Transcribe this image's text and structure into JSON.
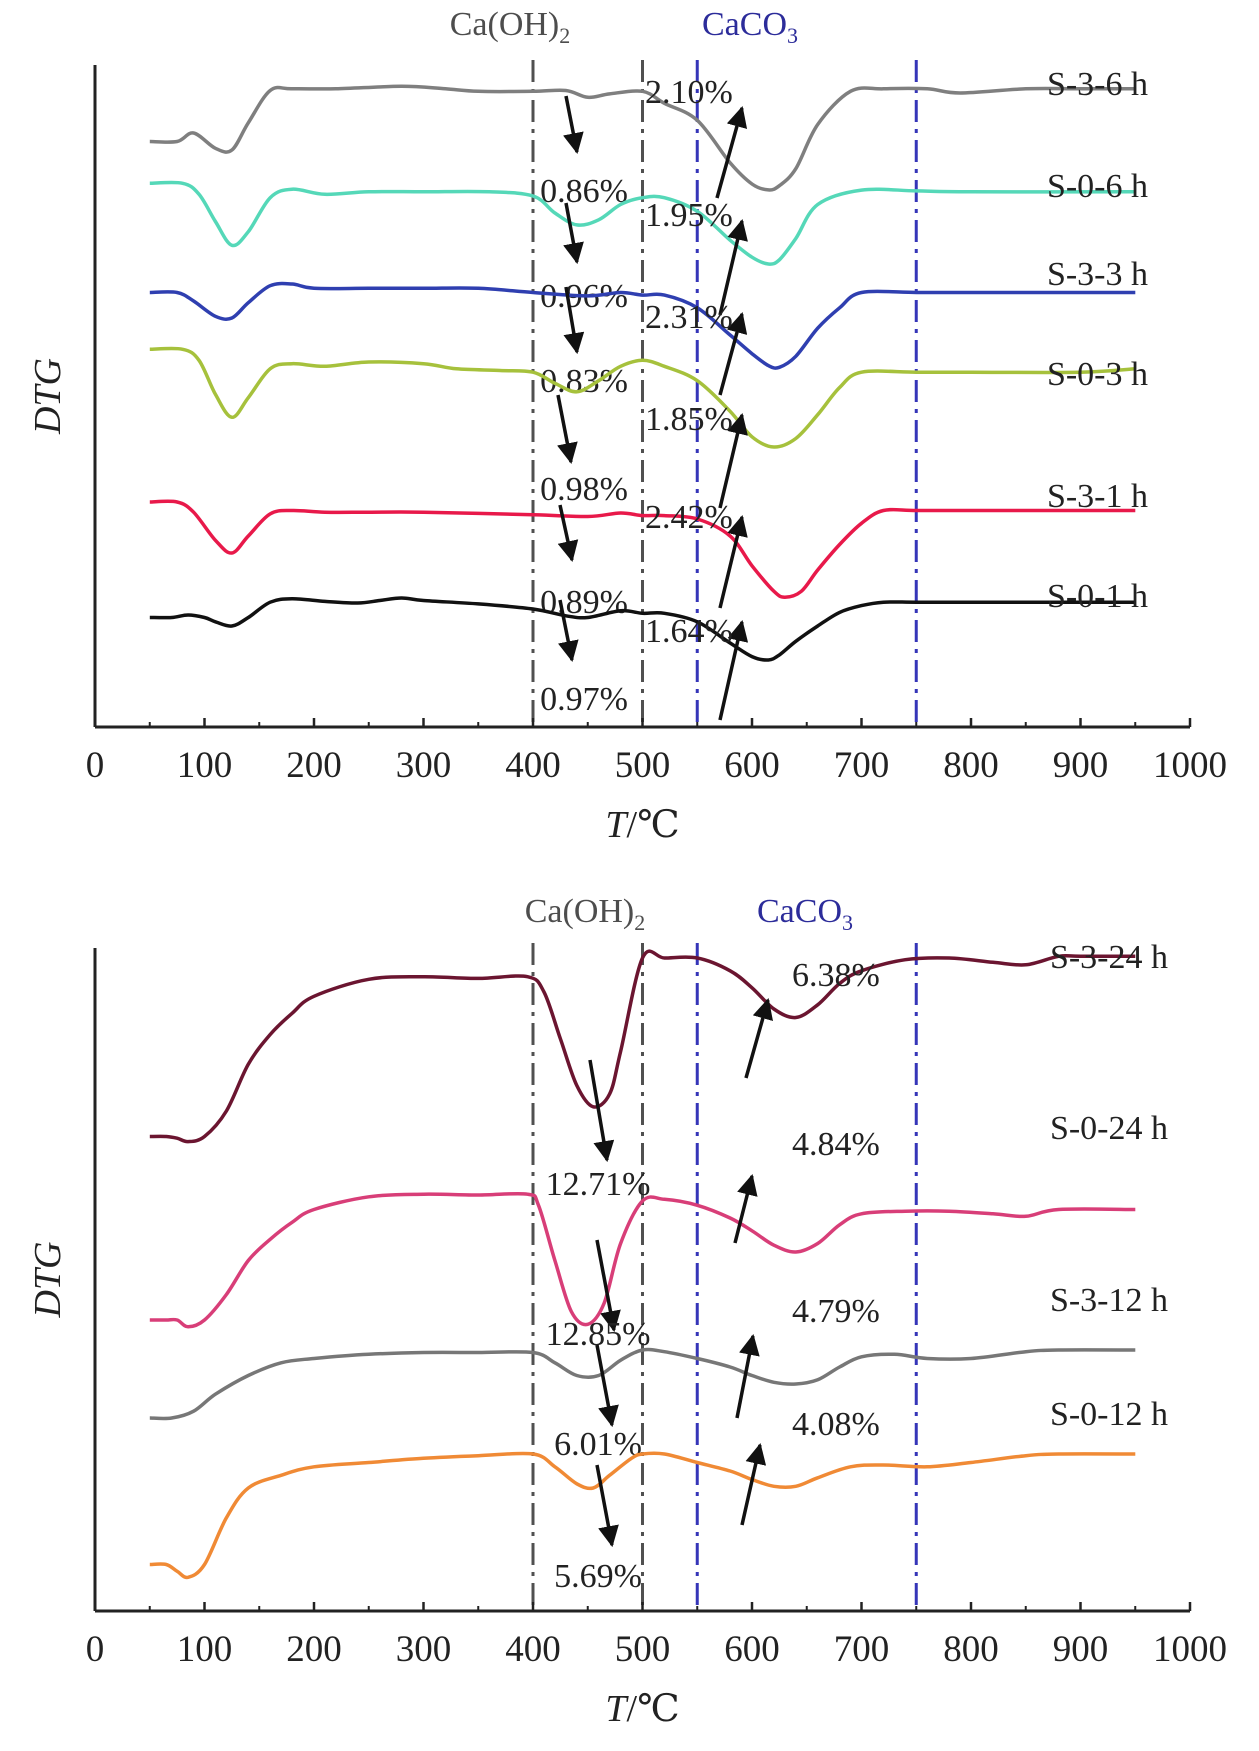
{
  "chart_data": [
    {
      "type": "line",
      "title": "",
      "xlabel_var": "T",
      "xlabel_unit": "/℃",
      "ylabel": "DTG",
      "xlim": [
        0,
        1000
      ],
      "xticks": [
        "0",
        "100",
        "200",
        "300",
        "400",
        "500",
        "600",
        "700",
        "800",
        "900",
        "1000"
      ],
      "grid": false,
      "regions": [
        {
          "label": "Ca(OH)",
          "sub": "2",
          "from": 400,
          "to": 500,
          "color": "#4d4d4d"
        },
        {
          "label": "CaCO",
          "sub": "3",
          "from": 550,
          "to": 750,
          "color": "#2c2c9a"
        }
      ],
      "series": [
        {
          "name": "S-3-6 h",
          "color": "#7f7f7f",
          "ch_pct": "0.86%",
          "cc_pct": "2.10%",
          "x": [
            50,
            75,
            90,
            110,
            125,
            140,
            160,
            180,
            220,
            280,
            320,
            350,
            400,
            430,
            450,
            470,
            500,
            520,
            550,
            580,
            600,
            615,
            625,
            640,
            660,
            690,
            720,
            760,
            790,
            850,
            900,
            950
          ],
          "y": [
            0.1,
            0.1,
            0.2,
            0.02,
            0.0,
            0.32,
            0.7,
            0.72,
            0.72,
            0.75,
            0.72,
            0.69,
            0.69,
            0.7,
            0.62,
            0.66,
            0.69,
            0.55,
            0.35,
            -0.15,
            -0.4,
            -0.47,
            -0.42,
            -0.22,
            0.3,
            0.69,
            0.72,
            0.72,
            0.67,
            0.72,
            0.72,
            0.72
          ]
        },
        {
          "name": "S-0-6 h",
          "color": "#55d8b8",
          "ch_pct": "0.96%",
          "cc_pct": "1.95%",
          "x": [
            50,
            80,
            95,
            110,
            125,
            140,
            160,
            180,
            210,
            250,
            300,
            360,
            400,
            420,
            440,
            460,
            480,
            500,
            520,
            550,
            580,
            600,
            615,
            625,
            640,
            660,
            700,
            750,
            800,
            950
          ],
          "y": [
            0.55,
            0.55,
            0.42,
            0.1,
            -0.18,
            -0.02,
            0.38,
            0.48,
            0.42,
            0.45,
            0.45,
            0.45,
            0.4,
            0.2,
            0.06,
            0.12,
            0.3,
            0.38,
            0.38,
            0.22,
            -0.12,
            -0.32,
            -0.4,
            -0.35,
            -0.1,
            0.3,
            0.47,
            0.46,
            0.45,
            0.45
          ]
        },
        {
          "name": "S-3-3 h",
          "color": "#2f3fb0",
          "ch_pct": "0.83%",
          "cc_pct": "2.31%",
          "x": [
            50,
            75,
            90,
            110,
            125,
            140,
            160,
            180,
            200,
            250,
            300,
            350,
            400,
            450,
            480,
            500,
            520,
            550,
            580,
            600,
            615,
            625,
            640,
            660,
            680,
            700,
            750,
            800,
            950
          ],
          "y": [
            0.3,
            0.3,
            0.2,
            0.02,
            0.0,
            0.18,
            0.38,
            0.4,
            0.35,
            0.35,
            0.35,
            0.35,
            0.3,
            0.26,
            0.3,
            0.27,
            0.27,
            0.12,
            -0.2,
            -0.42,
            -0.56,
            -0.58,
            -0.45,
            -0.12,
            0.12,
            0.3,
            0.3,
            0.3,
            0.3
          ]
        },
        {
          "name": "S-0-3 h",
          "color": "#a6c13c",
          "ch_pct": "0.98%",
          "cc_pct": "1.85%",
          "x": [
            50,
            80,
            95,
            110,
            125,
            140,
            160,
            180,
            210,
            250,
            300,
            330,
            370,
            400,
            420,
            440,
            460,
            480,
            500,
            520,
            550,
            580,
            600,
            620,
            640,
            660,
            680,
            700,
            750,
            800,
            900,
            950
          ],
          "y": [
            0.75,
            0.75,
            0.62,
            0.22,
            -0.05,
            0.18,
            0.52,
            0.58,
            0.55,
            0.6,
            0.58,
            0.52,
            0.5,
            0.48,
            0.35,
            0.25,
            0.38,
            0.55,
            0.62,
            0.55,
            0.38,
            0.02,
            -0.28,
            -0.4,
            -0.3,
            -0.02,
            0.3,
            0.48,
            0.48,
            0.48,
            0.48,
            0.52
          ]
        },
        {
          "name": "S-3-1 h",
          "color": "#e8194a",
          "ch_pct": "0.89%",
          "cc_pct": "2.42%",
          "x": [
            50,
            75,
            90,
            110,
            125,
            140,
            160,
            180,
            210,
            250,
            300,
            400,
            450,
            480,
            500,
            520,
            550,
            580,
            600,
            620,
            630,
            645,
            660,
            680,
            700,
            720,
            750,
            800,
            950
          ],
          "y": [
            0.6,
            0.6,
            0.48,
            0.15,
            0.0,
            0.2,
            0.46,
            0.5,
            0.48,
            0.48,
            0.48,
            0.45,
            0.43,
            0.47,
            0.44,
            0.44,
            0.4,
            0.2,
            -0.15,
            -0.45,
            -0.52,
            -0.45,
            -0.2,
            0.1,
            0.35,
            0.5,
            0.5,
            0.5,
            0.5
          ]
        },
        {
          "name": "S-0-1 h",
          "color": "#111111",
          "ch_pct": "0.97%",
          "cc_pct": "1.64%",
          "x": [
            50,
            70,
            85,
            100,
            110,
            125,
            140,
            160,
            180,
            210,
            240,
            260,
            280,
            300,
            350,
            400,
            430,
            450,
            480,
            500,
            520,
            550,
            580,
            600,
            615,
            625,
            640,
            660,
            680,
            700,
            720,
            750,
            800,
            950
          ],
          "y": [
            0.5,
            0.5,
            0.53,
            0.5,
            0.45,
            0.4,
            0.5,
            0.68,
            0.72,
            0.69,
            0.67,
            0.7,
            0.73,
            0.7,
            0.66,
            0.6,
            0.52,
            0.5,
            0.58,
            0.55,
            0.55,
            0.45,
            0.2,
            0.04,
            0.0,
            0.06,
            0.22,
            0.4,
            0.56,
            0.64,
            0.68,
            0.68,
            0.68,
            0.68
          ]
        }
      ]
    },
    {
      "type": "line",
      "title": "",
      "xlabel_var": "T",
      "xlabel_unit": "/℃",
      "ylabel": "DTG",
      "xlim": [
        0,
        1000
      ],
      "xticks": [
        "0",
        "100",
        "200",
        "300",
        "400",
        "500",
        "600",
        "700",
        "800",
        "900",
        "1000"
      ],
      "grid": false,
      "regions": [
        {
          "label": "Ca(OH)",
          "sub": "2",
          "from": 400,
          "to": 500,
          "color": "#4d4d4d"
        },
        {
          "label": "CaCO",
          "sub": "3",
          "from": 550,
          "to": 750,
          "color": "#2c2c9a"
        }
      ],
      "series": [
        {
          "name": "S-3-24 h",
          "color": "#6b1530",
          "ch_pct": "12.71%",
          "cc_pct": "6.38%",
          "x": [
            50,
            65,
            75,
            85,
            100,
            120,
            140,
            160,
            180,
            200,
            250,
            300,
            350,
            395,
            410,
            425,
            440,
            455,
            470,
            480,
            500,
            520,
            550,
            580,
            600,
            620,
            640,
            660,
            680,
            700,
            740,
            780,
            820,
            850,
            880,
            900,
            950
          ],
          "y": [
            0.1,
            0.1,
            0.08,
            0.04,
            0.1,
            0.4,
            0.95,
            1.3,
            1.55,
            1.75,
            1.95,
            1.98,
            1.96,
            1.98,
            1.8,
            1.25,
            0.7,
            0.45,
            0.6,
            1.1,
            2.2,
            2.2,
            2.2,
            2.05,
            1.85,
            1.6,
            1.5,
            1.65,
            1.9,
            2.05,
            2.18,
            2.2,
            2.15,
            2.12,
            2.22,
            2.22,
            2.22
          ]
        },
        {
          "name": "S-0-24 h",
          "color": "#d83e78",
          "ch_pct": "12.85%",
          "cc_pct": "4.84%",
          "x": [
            50,
            65,
            75,
            85,
            100,
            120,
            140,
            160,
            180,
            200,
            250,
            300,
            350,
            395,
            405,
            420,
            435,
            450,
            465,
            480,
            500,
            520,
            550,
            580,
            600,
            620,
            640,
            660,
            680,
            700,
            740,
            780,
            820,
            850,
            880,
            950
          ],
          "y": [
            0.0,
            0.0,
            0.0,
            -0.08,
            0.0,
            0.3,
            0.7,
            0.95,
            1.15,
            1.3,
            1.45,
            1.48,
            1.47,
            1.48,
            1.35,
            0.7,
            0.1,
            -0.05,
            0.2,
            0.9,
            1.4,
            1.42,
            1.35,
            1.2,
            1.05,
            0.88,
            0.8,
            0.9,
            1.12,
            1.25,
            1.28,
            1.28,
            1.25,
            1.22,
            1.3,
            1.3
          ]
        },
        {
          "name": "S-3-12 h",
          "color": "#777777",
          "ch_pct": "6.01%",
          "cc_pct": "4.79%",
          "x": [
            50,
            70,
            90,
            110,
            140,
            170,
            200,
            250,
            300,
            350,
            400,
            420,
            440,
            460,
            480,
            500,
            520,
            550,
            580,
            600,
            620,
            640,
            660,
            680,
            700,
            730,
            760,
            800,
            850,
            880,
            950
          ],
          "y": [
            0.2,
            0.2,
            0.28,
            0.48,
            0.7,
            0.85,
            0.9,
            0.95,
            0.97,
            0.97,
            0.97,
            0.85,
            0.7,
            0.7,
            0.88,
            1.0,
            0.98,
            0.9,
            0.8,
            0.7,
            0.62,
            0.6,
            0.65,
            0.8,
            0.92,
            0.95,
            0.9,
            0.9,
            0.98,
            1.0,
            1.0
          ]
        },
        {
          "name": "S-0-12 h",
          "color": "#f08a35",
          "ch_pct": "5.69%",
          "cc_pct": "4.08%",
          "x": [
            50,
            65,
            75,
            85,
            100,
            120,
            140,
            170,
            200,
            250,
            300,
            350,
            400,
            420,
            440,
            455,
            470,
            490,
            500,
            520,
            550,
            580,
            600,
            620,
            640,
            660,
            690,
            720,
            760,
            800,
            850,
            880,
            950
          ],
          "y": [
            0.3,
            0.3,
            0.22,
            0.15,
            0.3,
            0.85,
            1.2,
            1.35,
            1.45,
            1.5,
            1.55,
            1.58,
            1.6,
            1.45,
            1.25,
            1.2,
            1.35,
            1.55,
            1.6,
            1.6,
            1.5,
            1.4,
            1.3,
            1.22,
            1.22,
            1.32,
            1.45,
            1.47,
            1.45,
            1.5,
            1.58,
            1.6,
            1.6
          ]
        }
      ]
    }
  ]
}
